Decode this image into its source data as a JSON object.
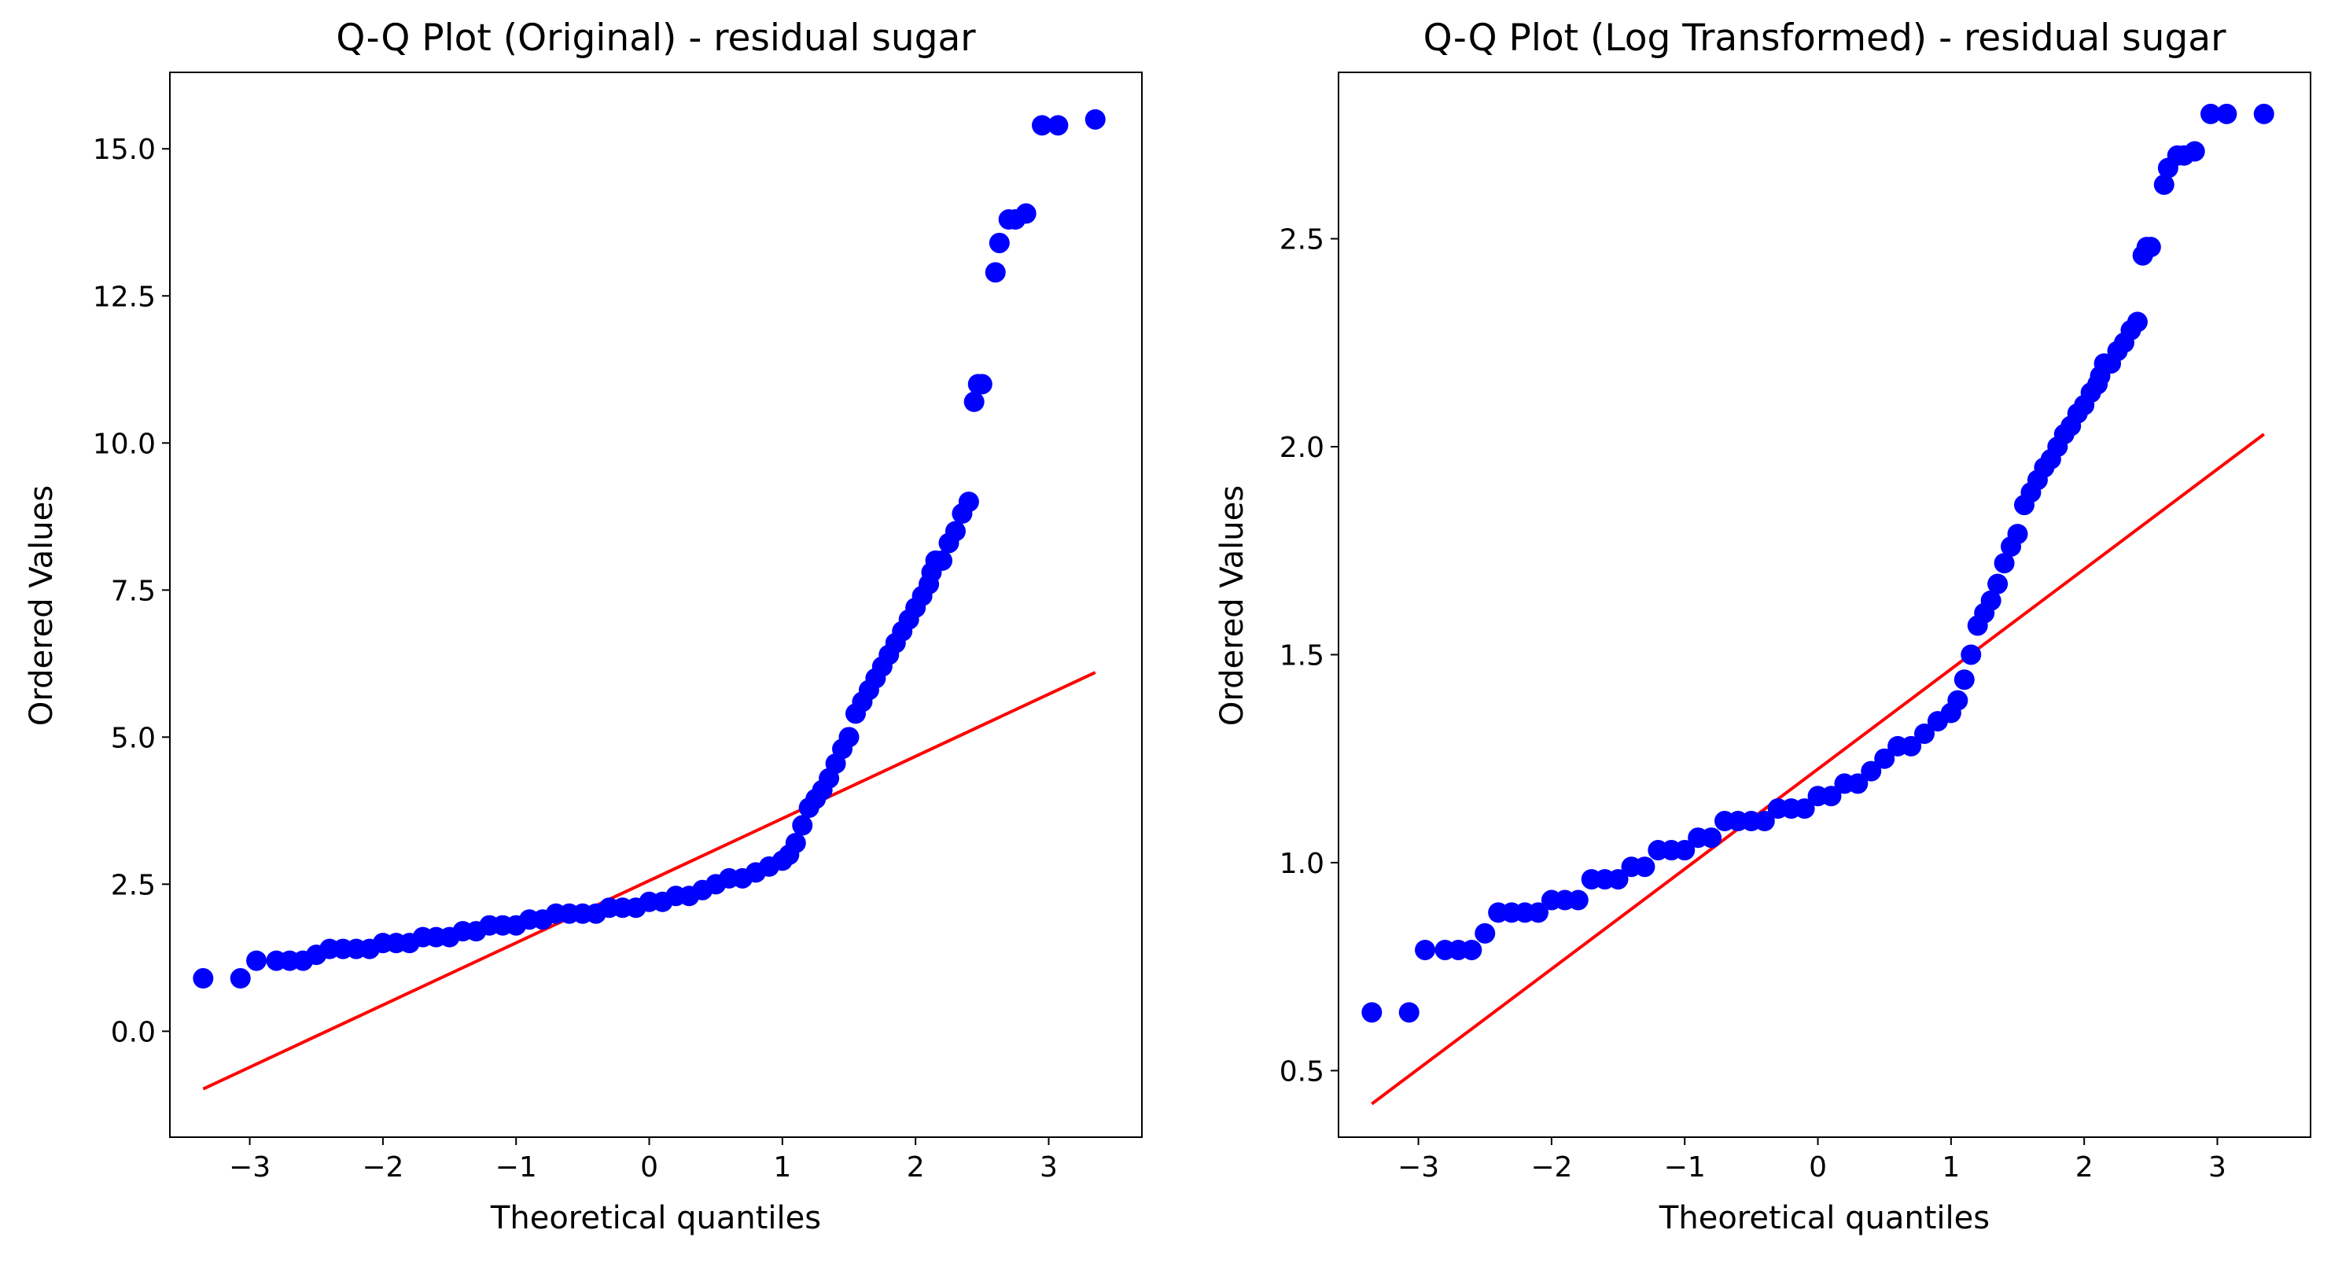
{
  "chart_data": [
    {
      "type": "scatter",
      "title": "Q-Q Plot (Original) - residual sugar",
      "xlabel": "Theoretical quantiles",
      "ylabel": "Ordered Values",
      "xlim": [
        -3.6,
        3.7
      ],
      "ylim": [
        -1.8,
        16.3
      ],
      "xticks": [
        -3,
        -2,
        -1,
        0,
        1,
        2,
        3
      ],
      "xtick_labels": [
        "−3",
        "−2",
        "−1",
        "0",
        "1",
        "2",
        "3"
      ],
      "yticks": [
        0.0,
        2.5,
        5.0,
        7.5,
        10.0,
        12.5,
        15.0
      ],
      "ytick_labels": [
        "0.0",
        "2.5",
        "5.0",
        "7.5",
        "10.0",
        "12.5",
        "15.0"
      ],
      "grid": false,
      "marker_color": "#0000ff",
      "line_color": "#ff0000",
      "fit_line": {
        "x": [
          -3.35,
          3.35
        ],
        "y": [
          -0.98,
          6.1
        ]
      },
      "points": {
        "x": [
          -3.35,
          -3.07,
          -2.95,
          -2.8,
          -2.7,
          -2.6,
          -2.5,
          -2.4,
          -2.3,
          -2.2,
          -2.1,
          -2.0,
          -1.9,
          -1.8,
          -1.7,
          -1.6,
          -1.5,
          -1.4,
          -1.3,
          -1.2,
          -1.1,
          -1.0,
          -0.9,
          -0.8,
          -0.7,
          -0.6,
          -0.5,
          -0.4,
          -0.3,
          -0.2,
          -0.1,
          0.0,
          0.1,
          0.2,
          0.3,
          0.4,
          0.5,
          0.6,
          0.7,
          0.8,
          0.9,
          1.0,
          1.05,
          1.1,
          1.15,
          1.2,
          1.25,
          1.3,
          1.35,
          1.4,
          1.45,
          1.5,
          1.55,
          1.6,
          1.65,
          1.7,
          1.75,
          1.8,
          1.85,
          1.9,
          1.95,
          2.0,
          2.05,
          2.1,
          2.12,
          2.15,
          2.2,
          2.25,
          2.3,
          2.35,
          2.4,
          2.44,
          2.47,
          2.5,
          2.6,
          2.63,
          2.7,
          2.75,
          2.83,
          2.95,
          3.07,
          3.35
        ],
        "y": [
          0.9,
          0.9,
          1.2,
          1.2,
          1.2,
          1.2,
          1.3,
          1.4,
          1.4,
          1.4,
          1.4,
          1.5,
          1.5,
          1.5,
          1.6,
          1.6,
          1.6,
          1.7,
          1.7,
          1.8,
          1.8,
          1.8,
          1.9,
          1.9,
          2.0,
          2.0,
          2.0,
          2.0,
          2.1,
          2.1,
          2.1,
          2.2,
          2.2,
          2.3,
          2.3,
          2.4,
          2.5,
          2.6,
          2.6,
          2.7,
          2.8,
          2.9,
          3.0,
          3.2,
          3.5,
          3.8,
          3.95,
          4.1,
          4.3,
          4.55,
          4.8,
          5.0,
          5.4,
          5.6,
          5.8,
          6.0,
          6.2,
          6.4,
          6.6,
          6.8,
          7.0,
          7.2,
          7.4,
          7.6,
          7.8,
          8.0,
          8.0,
          8.3,
          8.5,
          8.8,
          9.0,
          10.7,
          11.0,
          11.0,
          12.9,
          13.4,
          13.8,
          13.8,
          13.9,
          15.4,
          15.4,
          15.5
        ]
      }
    },
    {
      "type": "scatter",
      "title": "Q-Q Plot (Log Transformed) - residual sugar",
      "xlabel": "Theoretical quantiles",
      "ylabel": "Ordered Values",
      "xlim": [
        -3.6,
        3.7
      ],
      "ylim": [
        0.34,
        2.9
      ],
      "xticks": [
        -3,
        -2,
        -1,
        0,
        1,
        2,
        3
      ],
      "xtick_labels": [
        "−3",
        "−2",
        "−1",
        "0",
        "1",
        "2",
        "3"
      ],
      "yticks": [
        0.5,
        1.0,
        1.5,
        2.0,
        2.5
      ],
      "ytick_labels": [
        "0.5",
        "1.0",
        "1.5",
        "2.0",
        "2.5"
      ],
      "grid": false,
      "marker_color": "#0000ff",
      "line_color": "#ff0000",
      "fit_line": {
        "x": [
          -3.35,
          3.35
        ],
        "y": [
          0.42,
          2.03
        ]
      },
      "points": {
        "x": [
          -3.35,
          -3.07,
          -2.95,
          -2.8,
          -2.7,
          -2.6,
          -2.5,
          -2.4,
          -2.3,
          -2.2,
          -2.1,
          -2.0,
          -1.9,
          -1.8,
          -1.7,
          -1.6,
          -1.5,
          -1.4,
          -1.3,
          -1.2,
          -1.1,
          -1.0,
          -0.9,
          -0.8,
          -0.7,
          -0.6,
          -0.5,
          -0.4,
          -0.3,
          -0.2,
          -0.1,
          0.0,
          0.1,
          0.2,
          0.3,
          0.4,
          0.5,
          0.6,
          0.7,
          0.8,
          0.9,
          1.0,
          1.05,
          1.1,
          1.15,
          1.2,
          1.25,
          1.3,
          1.35,
          1.4,
          1.45,
          1.5,
          1.55,
          1.6,
          1.65,
          1.7,
          1.75,
          1.8,
          1.85,
          1.9,
          1.95,
          2.0,
          2.05,
          2.1,
          2.12,
          2.15,
          2.2,
          2.25,
          2.3,
          2.35,
          2.4,
          2.44,
          2.47,
          2.5,
          2.6,
          2.63,
          2.7,
          2.75,
          2.83,
          2.95,
          3.07,
          3.35
        ],
        "y": [
          0.64,
          0.64,
          0.79,
          0.79,
          0.79,
          0.79,
          0.83,
          0.88,
          0.88,
          0.88,
          0.88,
          0.91,
          0.91,
          0.91,
          0.96,
          0.96,
          0.96,
          0.99,
          0.99,
          1.03,
          1.03,
          1.03,
          1.06,
          1.06,
          1.1,
          1.1,
          1.1,
          1.1,
          1.13,
          1.13,
          1.13,
          1.16,
          1.16,
          1.19,
          1.19,
          1.22,
          1.25,
          1.28,
          1.28,
          1.31,
          1.34,
          1.36,
          1.39,
          1.44,
          1.5,
          1.57,
          1.6,
          1.63,
          1.67,
          1.72,
          1.76,
          1.79,
          1.86,
          1.89,
          1.92,
          1.95,
          1.97,
          2.0,
          2.03,
          2.05,
          2.08,
          2.1,
          2.13,
          2.15,
          2.17,
          2.2,
          2.2,
          2.23,
          2.25,
          2.28,
          2.3,
          2.46,
          2.48,
          2.48,
          2.63,
          2.67,
          2.7,
          2.7,
          2.71,
          2.8,
          2.8,
          2.8
        ]
      }
    }
  ]
}
